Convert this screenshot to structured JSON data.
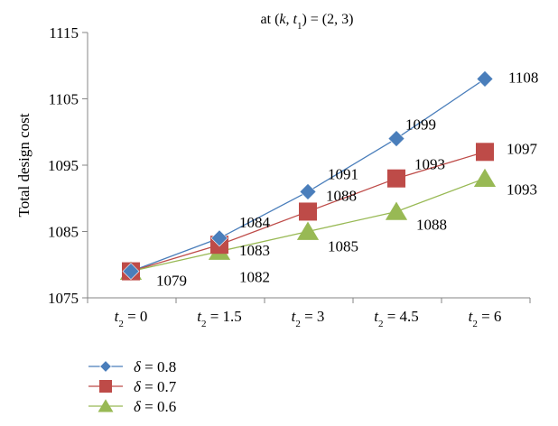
{
  "chart_data": {
    "type": "line",
    "title": "at (k, t1) = (2, 3)",
    "title_parts": {
      "prefix": "at (",
      "k": "k",
      "sep": ", ",
      "t": "t",
      "sub": "1",
      "suffix": ") = (2, 3)"
    },
    "ylabel": "Total design cost",
    "xlabel": "",
    "ylim": [
      1075,
      1115
    ],
    "yticks": [
      1075,
      1085,
      1095,
      1105,
      1115
    ],
    "categories": [
      "t2 = 0",
      "t2 = 1.5",
      "t2 = 3",
      "t2 = 4.5",
      "t2 = 6"
    ],
    "category_parts": [
      {
        "var": "t",
        "sub": "2",
        "rest": " = 0"
      },
      {
        "var": "t",
        "sub": "2",
        "rest": " = 1.5"
      },
      {
        "var": "t",
        "sub": "2",
        "rest": " = 3"
      },
      {
        "var": "t",
        "sub": "2",
        "rest": " = 4.5"
      },
      {
        "var": "t",
        "sub": "2",
        "rest": " = 6"
      }
    ],
    "series": [
      {
        "name": "δ = 0.8",
        "symbol": "δ",
        "rest": " = 0.8",
        "marker": "diamond",
        "color": "#4a7ebb",
        "values": [
          1079,
          1084,
          1091,
          1099,
          1108
        ]
      },
      {
        "name": "δ = 0.7",
        "symbol": "δ",
        "rest": " = 0.7",
        "marker": "square",
        "color": "#be4b48",
        "values": [
          1079,
          1083,
          1088,
          1093,
          1097
        ]
      },
      {
        "name": "δ = 0.6",
        "symbol": "δ",
        "rest": " = 0.6",
        "marker": "triangle",
        "color": "#98b954",
        "values": [
          1079,
          1082,
          1085,
          1088,
          1093
        ]
      }
    ],
    "data_labels": [
      [
        "1079",
        "1084",
        "1091",
        "1099",
        "1108"
      ],
      [
        "",
        "1083",
        "1088",
        "1093",
        "1097"
      ],
      [
        "",
        "1082",
        "1085",
        "1088",
        "1093"
      ]
    ],
    "grid": false,
    "legend_position": "bottom-left"
  }
}
